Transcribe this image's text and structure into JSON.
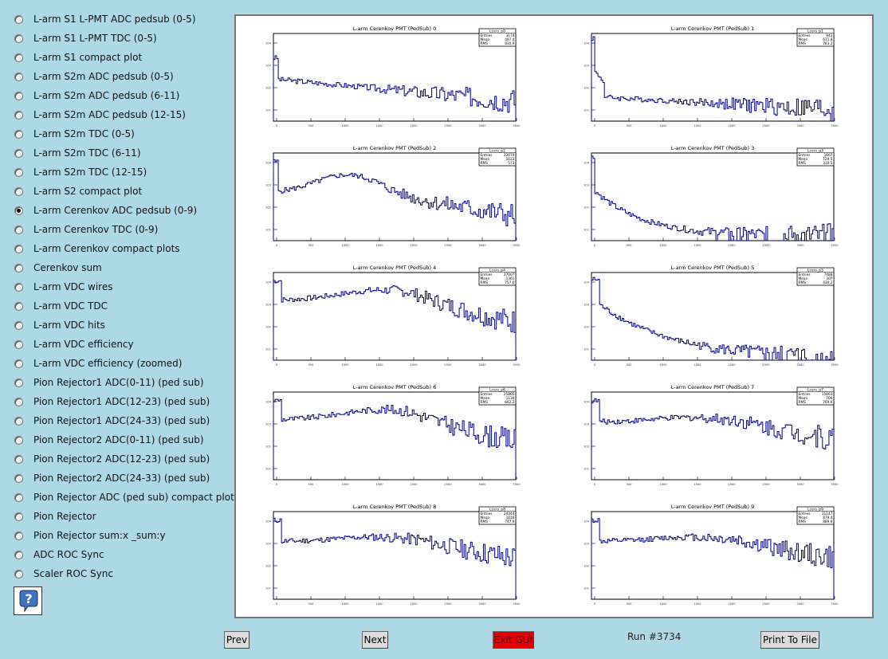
{
  "sidebar": {
    "items": [
      {
        "label": "L-arm S1 L-PMT ADC pedsub (0-5)",
        "selected": false
      },
      {
        "label": "L-arm S1 L-PMT TDC (0-5)",
        "selected": false
      },
      {
        "label": "L-arm S1 compact plot",
        "selected": false
      },
      {
        "label": "L-arm S2m ADC pedsub (0-5)",
        "selected": false
      },
      {
        "label": "L-arm S2m ADC pedsub (6-11)",
        "selected": false
      },
      {
        "label": "L-arm S2m ADC pedsub (12-15)",
        "selected": false
      },
      {
        "label": "L-arm S2m TDC (0-5)",
        "selected": false
      },
      {
        "label": "L-arm S2m TDC (6-11)",
        "selected": false
      },
      {
        "label": "L-arm S2m TDC (12-15)",
        "selected": false
      },
      {
        "label": "L-arm S2 compact plot",
        "selected": false
      },
      {
        "label": "L-arm Cerenkov ADC pedsub (0-9)",
        "selected": true
      },
      {
        "label": "L-arm Cerenkov TDC (0-9)",
        "selected": false
      },
      {
        "label": "L-arm Cerenkov compact plots",
        "selected": false
      },
      {
        "label": "Cerenkov sum",
        "selected": false
      },
      {
        "label": "L-arm VDC wires",
        "selected": false
      },
      {
        "label": "L-arm VDC TDC",
        "selected": false
      },
      {
        "label": "L-arm VDC hits",
        "selected": false
      },
      {
        "label": "L-arm VDC efficiency",
        "selected": false
      },
      {
        "label": "L-arm VDC efficiency (zoomed)",
        "selected": false
      },
      {
        "label": "Pion Rejector1 ADC(0-11) (ped sub)",
        "selected": false
      },
      {
        "label": "Pion Rejector1 ADC(12-23) (ped sub)",
        "selected": false
      },
      {
        "label": "Pion Rejector1 ADC(24-33) (ped sub)",
        "selected": false
      },
      {
        "label": "Pion Rejector2 ADC(0-11) (ped sub)",
        "selected": false
      },
      {
        "label": "Pion Rejector2 ADC(12-23) (ped sub)",
        "selected": false
      },
      {
        "label": "Pion Rejector2 ADC(24-33) (ped sub)",
        "selected": false
      },
      {
        "label": "Pion Rejector ADC (ped sub) compact plot",
        "selected": false
      },
      {
        "label": "Pion Rejector",
        "selected": false
      },
      {
        "label": "Pion Rejector sum:x _sum:y",
        "selected": false
      },
      {
        "label": "ADC ROC Sync",
        "selected": false
      },
      {
        "label": "Scaler ROC Sync",
        "selected": false
      }
    ],
    "help_icon": "question-mark-icon"
  },
  "buttons": {
    "prev": "Prev",
    "next": "Next",
    "exit": "Exit GUI",
    "print": "Print To File"
  },
  "run_label": "Run #3734",
  "colors": {
    "background": "#add8e6",
    "histogram_line": "#000080",
    "exit_button": "#e70000"
  },
  "chart_data": [
    {
      "type": "histogram",
      "title": "L-arm Cerenkov PMT (PedSub) 0",
      "stats_name": "Lcers_p0",
      "stats": {
        "Entries": "3174",
        "Mean": "497.4",
        "RMS": "830.9"
      },
      "shape": "flat-noisy",
      "log_y": true
    },
    {
      "type": "histogram",
      "title": "L-arm Cerenkov PMT (PedSub) 1",
      "stats_name": "Lcers_p1",
      "stats": {
        "Entries": "943",
        "Mean": "611.8",
        "RMS": "763.2"
      },
      "shape": "spike-sparse",
      "log_y": true
    },
    {
      "type": "histogram",
      "title": "L-arm Cerenkov PMT (PedSub) 2",
      "stats_name": "Lcers_p2",
      "stats": {
        "Entries": "23079",
        "Mean": "1022",
        "RMS": "573"
      },
      "shape": "broad-hump",
      "log_y": true
    },
    {
      "type": "histogram",
      "title": "L-arm Cerenkov PMT (PedSub) 3",
      "stats_name": "Lcers_p3",
      "stats": {
        "Entries": "1667",
        "Mean": "129.5",
        "RMS": "330.5"
      },
      "shape": "spike-decay",
      "log_y": true
    },
    {
      "type": "histogram",
      "title": "L-arm Cerenkov PMT (PedSub) 4",
      "stats_name": "Lcers_p4",
      "stats": {
        "Entries": "27007",
        "Mean": "1361",
        "RMS": "757.6"
      },
      "shape": "peak-hump",
      "log_y": true
    },
    {
      "type": "histogram",
      "title": "L-arm Cerenkov PMT (PedSub) 5",
      "stats_name": "Lcers_p5",
      "stats": {
        "Entries": "7488",
        "Mean": "307",
        "RMS": "430.2"
      },
      "shape": "peak-decay",
      "log_y": true
    },
    {
      "type": "histogram",
      "title": "L-arm Cerenkov PMT (PedSub) 6",
      "stats_name": "Lcers_p6",
      "stats": {
        "Entries": "25805",
        "Mean": "1130",
        "RMS": "692.2"
      },
      "shape": "peak-hump",
      "log_y": true
    },
    {
      "type": "histogram",
      "title": "L-arm Cerenkov PMT (PedSub) 7",
      "stats_name": "Lcers_p7",
      "stats": {
        "Entries": "15063",
        "Mean": "706",
        "RMS": "769.6"
      },
      "shape": "peak-plateau",
      "log_y": true
    },
    {
      "type": "histogram",
      "title": "L-arm Cerenkov PMT (PedSub) 8",
      "stats_name": "Lcers_p8",
      "stats": {
        "Entries": "24344",
        "Mean": "1016",
        "RMS": "747.9"
      },
      "shape": "peak-plateau",
      "log_y": true
    },
    {
      "type": "histogram",
      "title": "L-arm Cerenkov PMT (PedSub) 9",
      "stats_name": "Lcers_p9",
      "stats": {
        "Entries": "11147",
        "Mean": "879.4",
        "RMS": "889.6"
      },
      "shape": "peak-plateau",
      "log_y": true
    }
  ]
}
